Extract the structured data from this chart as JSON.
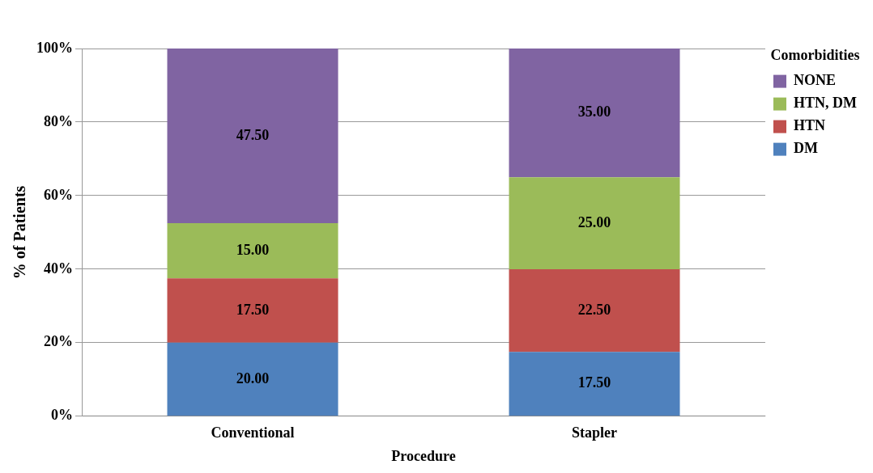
{
  "chart_data": {
    "type": "bar",
    "stacked": true,
    "xlabel": "Procedure",
    "ylabel": "% of Patients",
    "legend_title": "Comorbidities",
    "categories": [
      "Conventional",
      "Stapler"
    ],
    "series": [
      {
        "name": "DM",
        "color": "#4f81bd",
        "values": [
          20,
          17.5
        ],
        "value_labels": [
          "20.00",
          "17.50"
        ]
      },
      {
        "name": "HTN",
        "color": "#c0504d",
        "values": [
          17.5,
          22.5
        ],
        "value_labels": [
          "17.50",
          "22.50"
        ]
      },
      {
        "name": "HTN, DM",
        "color": "#9bbb59",
        "values": [
          15,
          25
        ],
        "value_labels": [
          "15.00",
          "25.00"
        ]
      },
      {
        "name": "NONE",
        "color": "#8064a2",
        "values": [
          47.5,
          35
        ],
        "value_labels": [
          "47.50",
          "35.00"
        ]
      }
    ],
    "ylim": [
      0,
      100
    ],
    "yticks": [
      {
        "value": 0,
        "label": "0%"
      },
      {
        "value": 20,
        "label": "20%"
      },
      {
        "value": 40,
        "label": "40%"
      },
      {
        "value": 60,
        "label": "60%"
      },
      {
        "value": 80,
        "label": "80%"
      },
      {
        "value": 100,
        "label": "100%"
      }
    ],
    "grid": "y",
    "legend": "right"
  }
}
